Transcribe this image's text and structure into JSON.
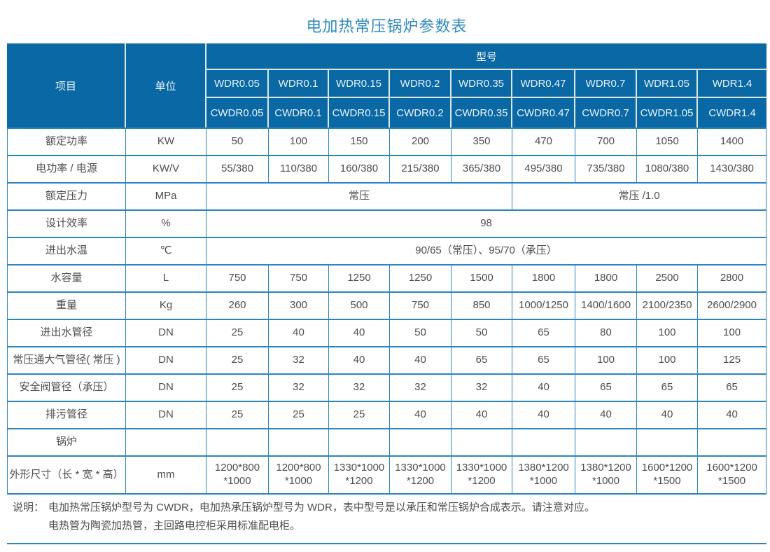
{
  "title": "电加热常压锅炉参数表",
  "colors": {
    "header_bg": "#0a69a5",
    "grid_line": "#2a85c0",
    "title_text": "#2f89c0",
    "body_text": "#4d4d4d",
    "header_text": "#e9f1f8"
  },
  "table": {
    "item_header": "项目",
    "unit_header": "单位",
    "model_header": "型号",
    "model_row_wdr": [
      "WDR0.05",
      "WDR0.1",
      "WDR0.15",
      "WDR0.2",
      "WDR0.35",
      "WDR0.47",
      "WDR0.7",
      "WDR1.05",
      "WDR1.4"
    ],
    "model_row_cwdr": [
      "CWDR0.05",
      "CWDR0.1",
      "CWDR0.15",
      "CWDR0.2",
      "CWDR0.35",
      "CWDR0.47",
      "CWDR0.7",
      "CWDR1.05",
      "CWDR1.4"
    ],
    "rows": [
      {
        "label": "额定功率",
        "unit": "KW",
        "cells": [
          {
            "t": "50"
          },
          {
            "t": "100"
          },
          {
            "t": "150"
          },
          {
            "t": "200"
          },
          {
            "t": "350"
          },
          {
            "t": "470"
          },
          {
            "t": "700"
          },
          {
            "t": "1050"
          },
          {
            "t": "1400"
          }
        ]
      },
      {
        "label": "电功率 / 电源",
        "unit": "KW/V",
        "cells": [
          {
            "t": "55/380"
          },
          {
            "t": "110/380"
          },
          {
            "t": "160/380"
          },
          {
            "t": "215/380"
          },
          {
            "t": "365/380"
          },
          {
            "t": "495/380"
          },
          {
            "t": "735/380"
          },
          {
            "t": "1080/380"
          },
          {
            "t": "1430/380"
          }
        ]
      },
      {
        "label": "额定压力",
        "unit": "MPa",
        "cells": [
          {
            "t": "常压",
            "span": 5
          },
          {
            "t": "常压 /1.0",
            "span": 4
          }
        ]
      },
      {
        "label": "设计效率",
        "unit": "%",
        "cells": [
          {
            "t": "98",
            "span": 9
          }
        ]
      },
      {
        "label": "进出水温",
        "unit": "℃",
        "cells": [
          {
            "t": "90/65（常压）、95/70（承压）",
            "span": 9
          }
        ]
      },
      {
        "label": "水容量",
        "unit": "L",
        "cells": [
          {
            "t": "750"
          },
          {
            "t": "750"
          },
          {
            "t": "1250"
          },
          {
            "t": "1250"
          },
          {
            "t": "1500"
          },
          {
            "t": "1800"
          },
          {
            "t": "1800"
          },
          {
            "t": "2500"
          },
          {
            "t": "2800"
          }
        ]
      },
      {
        "label": "重量",
        "unit": "Kg",
        "cells": [
          {
            "t": "260"
          },
          {
            "t": "300"
          },
          {
            "t": "500"
          },
          {
            "t": "750"
          },
          {
            "t": "850"
          },
          {
            "t": "1000/1250"
          },
          {
            "t": "1400/1600"
          },
          {
            "t": "2100/2350"
          },
          {
            "t": "2600/2900"
          }
        ]
      },
      {
        "label": "进出水管径",
        "unit": "DN",
        "cells": [
          {
            "t": "25"
          },
          {
            "t": "40"
          },
          {
            "t": "40"
          },
          {
            "t": "50"
          },
          {
            "t": "50"
          },
          {
            "t": "65"
          },
          {
            "t": "80"
          },
          {
            "t": "100"
          },
          {
            "t": "100"
          }
        ]
      },
      {
        "label": "常压通大气管径( 常压 )",
        "unit": "DN",
        "cells": [
          {
            "t": "25"
          },
          {
            "t": "32"
          },
          {
            "t": "40"
          },
          {
            "t": "40"
          },
          {
            "t": "65"
          },
          {
            "t": "65"
          },
          {
            "t": "100"
          },
          {
            "t": "100"
          },
          {
            "t": "125"
          }
        ]
      },
      {
        "label": "安全阀管径（承压）",
        "unit": "DN",
        "cells": [
          {
            "t": "25"
          },
          {
            "t": "32"
          },
          {
            "t": "32"
          },
          {
            "t": "32"
          },
          {
            "t": "32"
          },
          {
            "t": "40"
          },
          {
            "t": "65"
          },
          {
            "t": "65"
          },
          {
            "t": "65"
          }
        ]
      },
      {
        "label": "排污管径",
        "unit": "DN",
        "cells": [
          {
            "t": "25"
          },
          {
            "t": "25"
          },
          {
            "t": "25"
          },
          {
            "t": "40"
          },
          {
            "t": "40"
          },
          {
            "t": "40"
          },
          {
            "t": "40"
          },
          {
            "t": "40"
          },
          {
            "t": "40"
          }
        ]
      },
      {
        "label": "锅炉",
        "unit": "",
        "cells": [
          {
            "t": ""
          },
          {
            "t": ""
          },
          {
            "t": ""
          },
          {
            "t": ""
          },
          {
            "t": ""
          },
          {
            "t": ""
          },
          {
            "t": ""
          },
          {
            "t": ""
          },
          {
            "t": ""
          }
        ]
      },
      {
        "label": "外形尺寸（长 * 宽 * 高）",
        "unit": "mm",
        "tall": true,
        "cells": [
          {
            "t": "1200*800\n*1000"
          },
          {
            "t": "1200*800\n*1000"
          },
          {
            "t": "1330*1000\n*1200"
          },
          {
            "t": "1330*1000\n*1200"
          },
          {
            "t": "1330*1000\n*1200"
          },
          {
            "t": "1380*1200\n*1000"
          },
          {
            "t": "1380*1200\n*1000"
          },
          {
            "t": "1600*1200\n*1500"
          },
          {
            "t": "1600*1200\n*1500"
          }
        ]
      }
    ]
  },
  "note": {
    "label": "说明：",
    "line1": "电加热常压锅炉型号为 CWDR，电加热承压锅炉型号为 WDR，表中型号是以承压和常压锅炉合成表示。请注意对应。",
    "line2": "电热管为陶瓷加热管，主回路电控柜采用标准配电柜。"
  }
}
